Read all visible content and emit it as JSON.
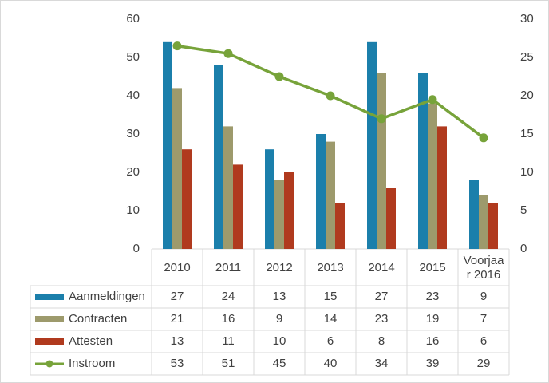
{
  "chart_data": {
    "type": "bar",
    "categories": [
      "2010",
      "2011",
      "2012",
      "2013",
      "2014",
      "2015",
      "Voorjaar 2016"
    ],
    "series": [
      {
        "name": "Aanmeldingen",
        "color": "#1b7fab",
        "axis": "y2",
        "values": [
          27,
          24,
          13,
          15,
          27,
          23,
          9
        ]
      },
      {
        "name": "Contracten",
        "color": "#9d9a6c",
        "axis": "y2",
        "values": [
          21,
          16,
          9,
          14,
          23,
          19,
          7
        ]
      },
      {
        "name": "Attesten",
        "color": "#b03a1e",
        "axis": "y2",
        "values": [
          13,
          11,
          10,
          6,
          8,
          16,
          6
        ]
      },
      {
        "name": "Instroom",
        "color": "#77a33a",
        "type": "line",
        "values": [
          53,
          51,
          45,
          40,
          34,
          39,
          29
        ]
      }
    ],
    "ylim": [
      0,
      60
    ],
    "yticks": [
      0,
      10,
      20,
      30,
      40,
      50,
      60
    ],
    "y2lim": [
      0,
      30
    ],
    "y2ticks": [
      0,
      5,
      10,
      15,
      20,
      25,
      30
    ],
    "data_table": true
  }
}
